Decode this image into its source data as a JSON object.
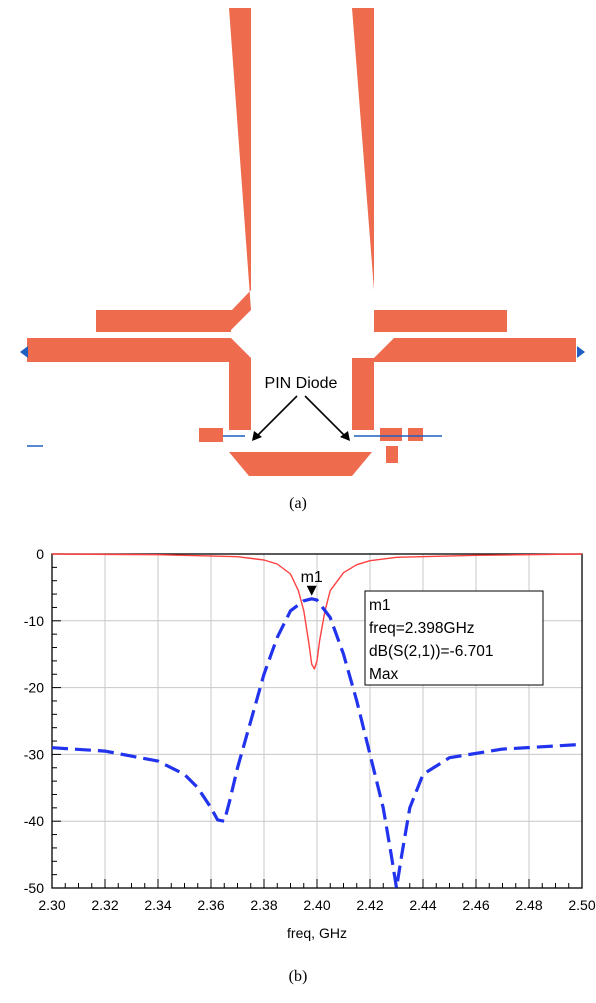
{
  "figure_a": {
    "annotation": "PIN Diode",
    "caption": "(a)",
    "colors": {
      "conductor": "#ee6b4e",
      "port": "#1f5fbf",
      "arrow": "#000000"
    }
  },
  "figure_b": {
    "caption": "(b)",
    "marker": {
      "name": "m1",
      "lines": [
        "m1",
        "freq=2.398GHz",
        "dB(S(2,1))=-6.701",
        "Max"
      ]
    }
  },
  "chart_data": {
    "type": "line",
    "xlabel": "freq, GHz",
    "ylabel": "",
    "xlim": [
      2.3,
      2.5
    ],
    "ylim": [
      -50,
      0
    ],
    "x_ticks": [
      "2.30",
      "2.32",
      "2.34",
      "2.36",
      "2.38",
      "2.40",
      "2.42",
      "2.44",
      "2.46",
      "2.48",
      "2.50"
    ],
    "y_ticks": [
      "0",
      "-10",
      "-20",
      "-30",
      "-40",
      "-50"
    ],
    "grid": true,
    "series": [
      {
        "style": "solid",
        "color": "#ff4040",
        "x": [
          2.3,
          2.34,
          2.37,
          2.38,
          2.385,
          2.39,
          2.393,
          2.395,
          2.397,
          2.398,
          2.399,
          2.4,
          2.401,
          2.403,
          2.405,
          2.41,
          2.415,
          2.42,
          2.43,
          2.46,
          2.5
        ],
        "y": [
          0,
          -0.1,
          -0.4,
          -0.9,
          -1.5,
          -3.0,
          -5.5,
          -8.5,
          -13.5,
          -16.5,
          -17.2,
          -16.0,
          -13.0,
          -8.5,
          -5.5,
          -2.8,
          -1.6,
          -1.0,
          -0.5,
          -0.2,
          0
        ]
      },
      {
        "style": "dashed",
        "color": "#2233ee",
        "x": [
          2.3,
          2.32,
          2.34,
          2.35,
          2.355,
          2.36,
          2.3625,
          2.365,
          2.367,
          2.37,
          2.375,
          2.38,
          2.385,
          2.39,
          2.395,
          2.398,
          2.4,
          2.405,
          2.41,
          2.415,
          2.42,
          2.425,
          2.428,
          2.43,
          2.432,
          2.435,
          2.44,
          2.45,
          2.47,
          2.5
        ],
        "y": [
          -29.0,
          -29.5,
          -31.0,
          -33.0,
          -35.0,
          -38.0,
          -39.8,
          -40.0,
          -37.0,
          -32.0,
          -25.0,
          -18.0,
          -12.5,
          -8.5,
          -7.0,
          -6.7,
          -6.9,
          -9.5,
          -15.0,
          -22.0,
          -30.0,
          -38.0,
          -45.0,
          -50.0,
          -45.0,
          -38.0,
          -33.0,
          -30.5,
          -29.2,
          -28.5
        ]
      }
    ]
  }
}
